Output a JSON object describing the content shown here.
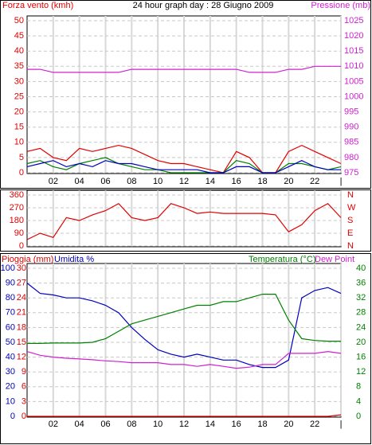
{
  "chart_data": [
    {
      "type": "line",
      "title": "24 hour graph day : 28 Giugno 2009",
      "ylabel": "Forza vento (kmh)",
      "y2label": "Pressione (mb)",
      "ylabel_color": "#e00000",
      "y2label_color": "#d020d0",
      "x": [
        0,
        1,
        2,
        3,
        4,
        5,
        6,
        7,
        8,
        9,
        10,
        11,
        12,
        13,
        14,
        15,
        16,
        17,
        18,
        19,
        20,
        21,
        22,
        23,
        24
      ],
      "xlim": [
        0,
        24
      ],
      "xticks": [
        {
          "value": 2,
          "label": "02"
        },
        {
          "value": 4,
          "label": "04"
        },
        {
          "value": 6,
          "label": "06"
        },
        {
          "value": 8,
          "label": "08"
        },
        10,
        12,
        14,
        16,
        18,
        20,
        22,
        {
          "value": 24,
          "label": "|"
        }
      ],
      "ylim": [
        0,
        50
      ],
      "yticks": [
        0,
        5,
        10,
        15,
        20,
        25,
        30,
        35,
        40,
        45,
        50
      ],
      "y2lim": [
        975,
        1025
      ],
      "y2ticks": [
        975,
        980,
        985,
        990,
        995,
        1000,
        1005,
        1010,
        1015,
        1020,
        1025
      ],
      "grid": true,
      "series": [
        {
          "color": "#e00000",
          "values": [
            7,
            8,
            5,
            4,
            8,
            7,
            8,
            9,
            8,
            6,
            4,
            3,
            3,
            2,
            1,
            0,
            7,
            5,
            0,
            0,
            7,
            9,
            7,
            5,
            3
          ]
        },
        {
          "color": "#008000",
          "values": [
            3,
            4,
            2,
            1,
            3,
            4,
            5,
            3,
            2,
            1,
            1,
            0,
            0,
            0,
            0,
            0,
            4,
            3,
            0,
            0,
            3,
            3,
            2,
            1,
            2
          ]
        },
        {
          "color": "#0000c0",
          "values": [
            2,
            3,
            4,
            2,
            3,
            2,
            4,
            3,
            3,
            2,
            1,
            1,
            1,
            1,
            0,
            0,
            2,
            2,
            0,
            0,
            2,
            4,
            2,
            1,
            1
          ]
        },
        {
          "color": "#d020d0",
          "axis": "y2",
          "values": [
            1009,
            1009,
            1008,
            1008,
            1008,
            1008,
            1008,
            1008,
            1009,
            1009,
            1009,
            1009,
            1009,
            1009,
            1009,
            1009,
            1009,
            1008,
            1008,
            1008,
            1009,
            1009,
            1010,
            1010,
            1010
          ]
        }
      ]
    },
    {
      "type": "line",
      "x": [
        0,
        1,
        2,
        3,
        4,
        5,
        6,
        7,
        8,
        9,
        10,
        11,
        12,
        13,
        14,
        15,
        16,
        17,
        18,
        19,
        20,
        21,
        22,
        23,
        24
      ],
      "xlim": [
        0,
        24
      ],
      "xticks": [
        {
          "value": 2,
          "label": "02"
        },
        {
          "value": 4,
          "label": "04"
        },
        {
          "value": 6,
          "label": "06"
        },
        {
          "value": 8,
          "label": "08"
        },
        10,
        12,
        14,
        16,
        18,
        20,
        22,
        {
          "value": 24,
          "label": "|"
        }
      ],
      "ylim": [
        0,
        360
      ],
      "yticks": [
        0,
        90,
        180,
        270,
        360
      ],
      "y2lim": [
        0,
        360
      ],
      "y2ticks": [
        {
          "value": 0,
          "label": "N"
        },
        {
          "value": 90,
          "label": "E"
        },
        {
          "value": 180,
          "label": "S"
        },
        {
          "value": 270,
          "label": "W"
        },
        {
          "value": 360,
          "label": "N"
        }
      ],
      "grid": true,
      "series": [
        {
          "color": "#e00000",
          "values": [
            45,
            90,
            60,
            200,
            180,
            220,
            250,
            300,
            200,
            180,
            200,
            300,
            270,
            230,
            240,
            230,
            230,
            230,
            230,
            220,
            100,
            150,
            250,
            300,
            200
          ]
        }
      ]
    },
    {
      "type": "line",
      "x": [
        0,
        1,
        2,
        3,
        4,
        5,
        6,
        7,
        8,
        9,
        10,
        11,
        12,
        13,
        14,
        15,
        16,
        17,
        18,
        19,
        20,
        21,
        22,
        23,
        24
      ],
      "xlim": [
        0,
        24
      ],
      "xticks": [
        {
          "value": 2,
          "label": "02"
        },
        {
          "value": 4,
          "label": "04"
        },
        {
          "value": 6,
          "label": "06"
        },
        {
          "value": 8,
          "label": "08"
        },
        10,
        12,
        14,
        16,
        18,
        20,
        22,
        {
          "value": 24,
          "label": "|"
        }
      ],
      "ylabel": "Umidita %",
      "y3label": "Pioggia (mm)",
      "y2label": "Temperatura (°C)",
      "ylabel_color": "#0000c0",
      "y3label_color": "#e00000",
      "y2label_color": "#008000",
      "ylim": [
        0,
        100
      ],
      "yticks": [
        0,
        10,
        20,
        30,
        40,
        50,
        60,
        70,
        80,
        90,
        100
      ],
      "y3lim": [
        0,
        30
      ],
      "y3ticks": [
        0,
        3,
        6,
        9,
        12,
        15,
        18,
        21,
        24,
        27,
        30
      ],
      "y2lim": [
        0,
        40
      ],
      "y2ticks": [
        0,
        4,
        8,
        12,
        16,
        20,
        24,
        28,
        32,
        36,
        40
      ],
      "grid": true,
      "series": [
        {
          "color": "#e00000",
          "axis": "y3",
          "values": [
            0,
            0,
            0,
            0,
            0,
            0,
            0,
            0,
            0,
            0,
            0,
            0,
            0,
            0,
            0,
            0,
            0,
            0,
            0,
            0,
            0,
            0,
            0,
            0,
            0.3
          ]
        },
        {
          "color": "#0000c0",
          "values": [
            90,
            83,
            82,
            80,
            80,
            78,
            75,
            70,
            60,
            52,
            45,
            42,
            40,
            42,
            40,
            38,
            38,
            35,
            33,
            33,
            38,
            80,
            85,
            87,
            83
          ]
        },
        {
          "color": "#008000",
          "axis": "y2",
          "values": [
            19.7,
            19.7,
            19.8,
            19.8,
            19.8,
            20,
            21,
            23,
            25,
            26,
            27,
            28,
            29,
            30,
            30,
            31,
            31,
            32,
            33,
            33,
            26,
            21,
            20.5,
            20.3,
            20.3
          ]
        },
        {
          "name": "Dew Point",
          "color": "#d020d0",
          "axis": "y2",
          "values": [
            17.5,
            16.5,
            16,
            15.7,
            15.5,
            15.3,
            15,
            14.8,
            14.5,
            14.5,
            14.5,
            14,
            14,
            13.5,
            14,
            13.5,
            13,
            13.3,
            14,
            14,
            17,
            17,
            17,
            17.5,
            17
          ]
        }
      ]
    }
  ]
}
